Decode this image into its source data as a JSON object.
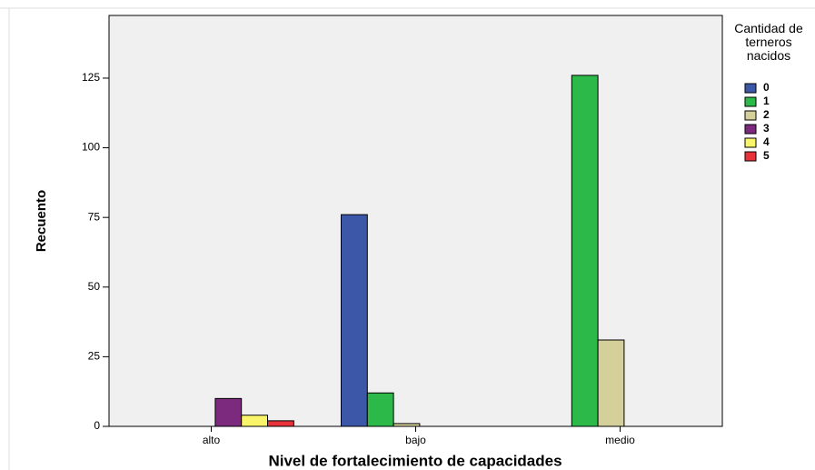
{
  "chart_data": {
    "type": "bar",
    "x_label": "Nivel de fortalecimiento de capacidades",
    "y_label": "Recuento",
    "legend_title": "Cantidad de terneros nacidos",
    "categories": [
      "alto",
      "bajo",
      "medio"
    ],
    "series": [
      {
        "name": "0",
        "color": "#3c57a8",
        "values": [
          null,
          76,
          null
        ]
      },
      {
        "name": "1",
        "color": "#2db84a",
        "values": [
          null,
          12,
          126
        ]
      },
      {
        "name": "2",
        "color": "#d5cf9a",
        "values": [
          null,
          1,
          31
        ]
      },
      {
        "name": "3",
        "color": "#7b2a7e",
        "values": [
          10,
          null,
          null
        ]
      },
      {
        "name": "4",
        "color": "#f9f56a",
        "values": [
          4,
          null,
          null
        ]
      },
      {
        "name": "5",
        "color": "#e8323a",
        "values": [
          2,
          null,
          null
        ]
      }
    ],
    "ylim": [
      0,
      147.5
    ],
    "yticks": [
      0,
      25,
      50,
      75,
      100,
      125
    ],
    "legend": "right"
  }
}
